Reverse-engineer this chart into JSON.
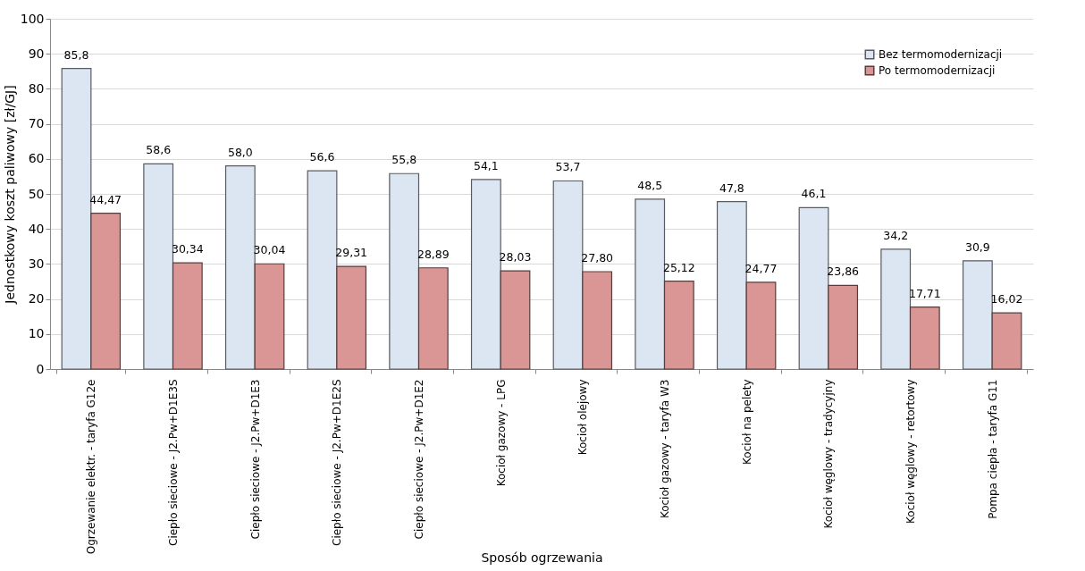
{
  "chart_data": {
    "type": "bar",
    "xlabel": "Sposób ogrzewania",
    "ylabel": "Jednostkowy koszt paliwowy [zł/GJ]",
    "categories": [
      "Ogrzewanie elektr. - taryfa G12e",
      "Ciepło sieciowe - J2.Pw+D1E3S",
      "Ciepło sieciowe - J2.Pw+D1E3",
      "Ciepło sieciowe - J2.Pw+D1E2S",
      "Ciepło sieciowe - J2.Pw+D1E2",
      "Kocioł gazowy - LPG",
      "Kocioł olejowy",
      "Kocioł gazowy - taryfa W3",
      "Kocioł na pelety",
      "Kocioł węglowy - tradycyjny",
      "Kocioł węglowy - retortowy",
      "Pompa ciepła - taryfa G11"
    ],
    "series": [
      {
        "name": "Bez termomodernizacji",
        "color": "#dce6f2",
        "values": [
          85.8,
          58.6,
          58.0,
          56.6,
          55.8,
          54.1,
          53.7,
          48.5,
          47.8,
          46.1,
          34.2,
          30.9
        ],
        "value_labels": [
          "85,8",
          "58,6",
          "58,0",
          "56,6",
          "55,8",
          "54,1",
          "53,7",
          "48,5",
          "47,8",
          "46,1",
          "34,2",
          "30,9"
        ]
      },
      {
        "name": "Po termomodernizacji",
        "color": "#d99694",
        "values": [
          44.47,
          30.34,
          30.04,
          29.31,
          28.89,
          28.03,
          27.8,
          25.12,
          24.77,
          23.86,
          17.71,
          16.02
        ],
        "value_labels": [
          "44,47",
          "30,34",
          "30,04",
          "29,31",
          "28,89",
          "28,03",
          "27,80",
          "25,12",
          "24,77",
          "23,86",
          "17,71",
          "16,02"
        ]
      }
    ],
    "ylim": [
      0,
      100
    ],
    "yticks": [
      0,
      10,
      20,
      30,
      40,
      50,
      60,
      70,
      80,
      90,
      100
    ],
    "grid": "y",
    "legend": "top right"
  }
}
